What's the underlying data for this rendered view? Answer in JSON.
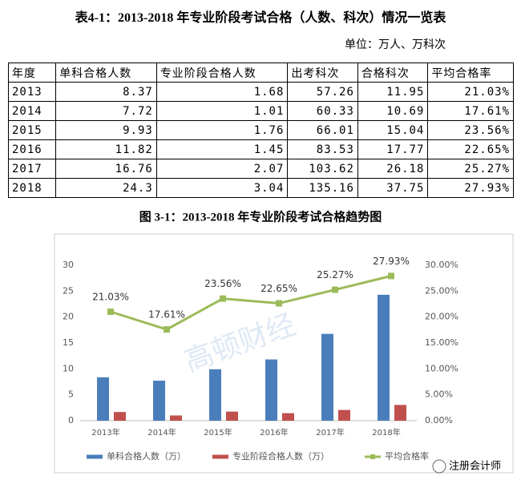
{
  "table_title": "表4-1：2013-2018 年专业阶段考试合格（人数、科次）情况一览表",
  "unit": "单位：万人、万科次",
  "table": {
    "header": [
      "年度",
      "单科合格人数",
      "专业阶段合格人数",
      "出考科次",
      "合格科次",
      "平均合格率"
    ],
    "rows": [
      [
        "2013",
        "8.37",
        "1.68",
        "57.26",
        "11.95",
        "21.03%"
      ],
      [
        "2014",
        "7.72",
        "1.01",
        "60.33",
        "10.69",
        "17.61%"
      ],
      [
        "2015",
        "9.93",
        "1.76",
        "66.01",
        "15.04",
        "23.56%"
      ],
      [
        "2016",
        "11.82",
        "1.45",
        "83.53",
        "17.77",
        "22.65%"
      ],
      [
        "2017",
        "16.76",
        "2.07",
        "103.62",
        "26.18",
        "25.27%"
      ],
      [
        "2018",
        "24.3",
        "3.04",
        "135.16",
        "37.75",
        "27.93%"
      ]
    ]
  },
  "chart_data": {
    "type": "bar",
    "title": "图 3-1：2013-2018 年专业阶段考试合格趋势图",
    "categories": [
      "2013年",
      "2014年",
      "2015年",
      "2016年",
      "2017年",
      "2018年"
    ],
    "series": [
      {
        "name": "单科合格人数（万）",
        "color": "#4a7ebb",
        "values": [
          8.37,
          7.72,
          9.93,
          11.82,
          16.76,
          24.3
        ]
      },
      {
        "name": "专业阶段合格人数（万）",
        "color": "#c0504d",
        "values": [
          1.68,
          1.01,
          1.76,
          1.45,
          2.07,
          3.04
        ]
      },
      {
        "name": "平均合格率",
        "color": "#9bbb59",
        "type": "line",
        "axis": "y2",
        "values": [
          21.03,
          17.61,
          23.56,
          22.65,
          25.27,
          27.93
        ],
        "value_labels": [
          "21.03%",
          "17.61%",
          "23.56%",
          "22.65%",
          "25.27%",
          "27.93%"
        ]
      }
    ],
    "ylim": [
      0,
      30
    ],
    "yticks": [
      0,
      5,
      10,
      15,
      20,
      25,
      30
    ],
    "y2lim": [
      0,
      30
    ],
    "y2ticks": [
      {
        "value": 0,
        "label": "0.00%"
      },
      {
        "value": 5,
        "label": "5.00%"
      },
      {
        "value": 10,
        "label": "10.00%"
      },
      {
        "value": 15,
        "label": "15.00%"
      },
      {
        "value": 20,
        "label": "20.00%"
      },
      {
        "value": 25,
        "label": "25.00%"
      },
      {
        "value": 30,
        "label": "30.00%"
      }
    ],
    "legend": "bottom"
  },
  "watermark": "高顿财经",
  "badge": "注册会计师"
}
